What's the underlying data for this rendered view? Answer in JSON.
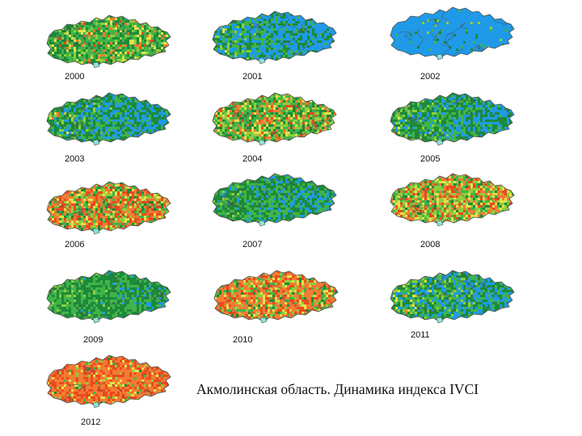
{
  "caption": "Акмолинская область. Динамика индекса IVCI",
  "palette": {
    "blue": "#1f9ae8",
    "dark_green": "#1d8a3a",
    "green": "#41b449",
    "light_green": "#8fcf3c",
    "yellow": "#e4e14a",
    "orange": "#f57b32",
    "red": "#ea4a1f",
    "cyan_lake": "#8fe3de",
    "border": "#4a4a4a"
  },
  "maps": [
    {
      "year": "2000",
      "mix": {
        "blue": 0,
        "dark_green": 0.3,
        "green": 0.38,
        "light_green": 0.17,
        "yellow": 0.07,
        "orange": 0.05,
        "red": 0.03
      }
    },
    {
      "year": "2001",
      "mix": {
        "blue": 0.52,
        "dark_green": 0.2,
        "green": 0.16,
        "light_green": 0.07,
        "yellow": 0.03,
        "orange": 0.01,
        "red": 0.01
      }
    },
    {
      "year": "2002",
      "mix": {
        "blue": 0.95,
        "dark_green": 0.02,
        "green": 0.02,
        "light_green": 0.01,
        "yellow": 0,
        "orange": 0,
        "red": 0
      }
    },
    {
      "year": "2003",
      "mix": {
        "blue": 0.38,
        "dark_green": 0.26,
        "green": 0.2,
        "light_green": 0.08,
        "yellow": 0.04,
        "orange": 0.02,
        "red": 0.02
      }
    },
    {
      "year": "2004",
      "mix": {
        "blue": 0,
        "dark_green": 0.18,
        "green": 0.26,
        "light_green": 0.24,
        "yellow": 0.12,
        "orange": 0.11,
        "red": 0.09
      }
    },
    {
      "year": "2005",
      "mix": {
        "blue": 0.34,
        "dark_green": 0.28,
        "green": 0.22,
        "light_green": 0.09,
        "yellow": 0.04,
        "orange": 0.02,
        "red": 0.01
      }
    },
    {
      "year": "2006",
      "mix": {
        "blue": 0,
        "dark_green": 0.1,
        "green": 0.14,
        "light_green": 0.12,
        "yellow": 0.12,
        "orange": 0.3,
        "red": 0.22
      }
    },
    {
      "year": "2007",
      "mix": {
        "blue": 0.22,
        "dark_green": 0.32,
        "green": 0.28,
        "light_green": 0.1,
        "yellow": 0.05,
        "orange": 0.02,
        "red": 0.01
      }
    },
    {
      "year": "2008",
      "mix": {
        "blue": 0,
        "dark_green": 0.08,
        "green": 0.18,
        "light_green": 0.24,
        "yellow": 0.18,
        "orange": 0.18,
        "red": 0.14
      }
    },
    {
      "year": "2009",
      "mix": {
        "blue": 0.14,
        "dark_green": 0.36,
        "green": 0.28,
        "light_green": 0.12,
        "yellow": 0.06,
        "orange": 0.02,
        "red": 0.02
      }
    },
    {
      "year": "2010",
      "mix": {
        "blue": 0,
        "dark_green": 0.06,
        "green": 0.1,
        "light_green": 0.1,
        "yellow": 0.1,
        "orange": 0.4,
        "red": 0.24
      }
    },
    {
      "year": "2011",
      "mix": {
        "blue": 0.38,
        "dark_green": 0.24,
        "green": 0.16,
        "light_green": 0.1,
        "yellow": 0.06,
        "orange": 0.04,
        "red": 0.02
      }
    },
    {
      "year": "2012",
      "mix": {
        "blue": 0,
        "dark_green": 0.02,
        "green": 0.04,
        "light_green": 0.06,
        "yellow": 0.06,
        "orange": 0.52,
        "red": 0.3
      }
    }
  ]
}
